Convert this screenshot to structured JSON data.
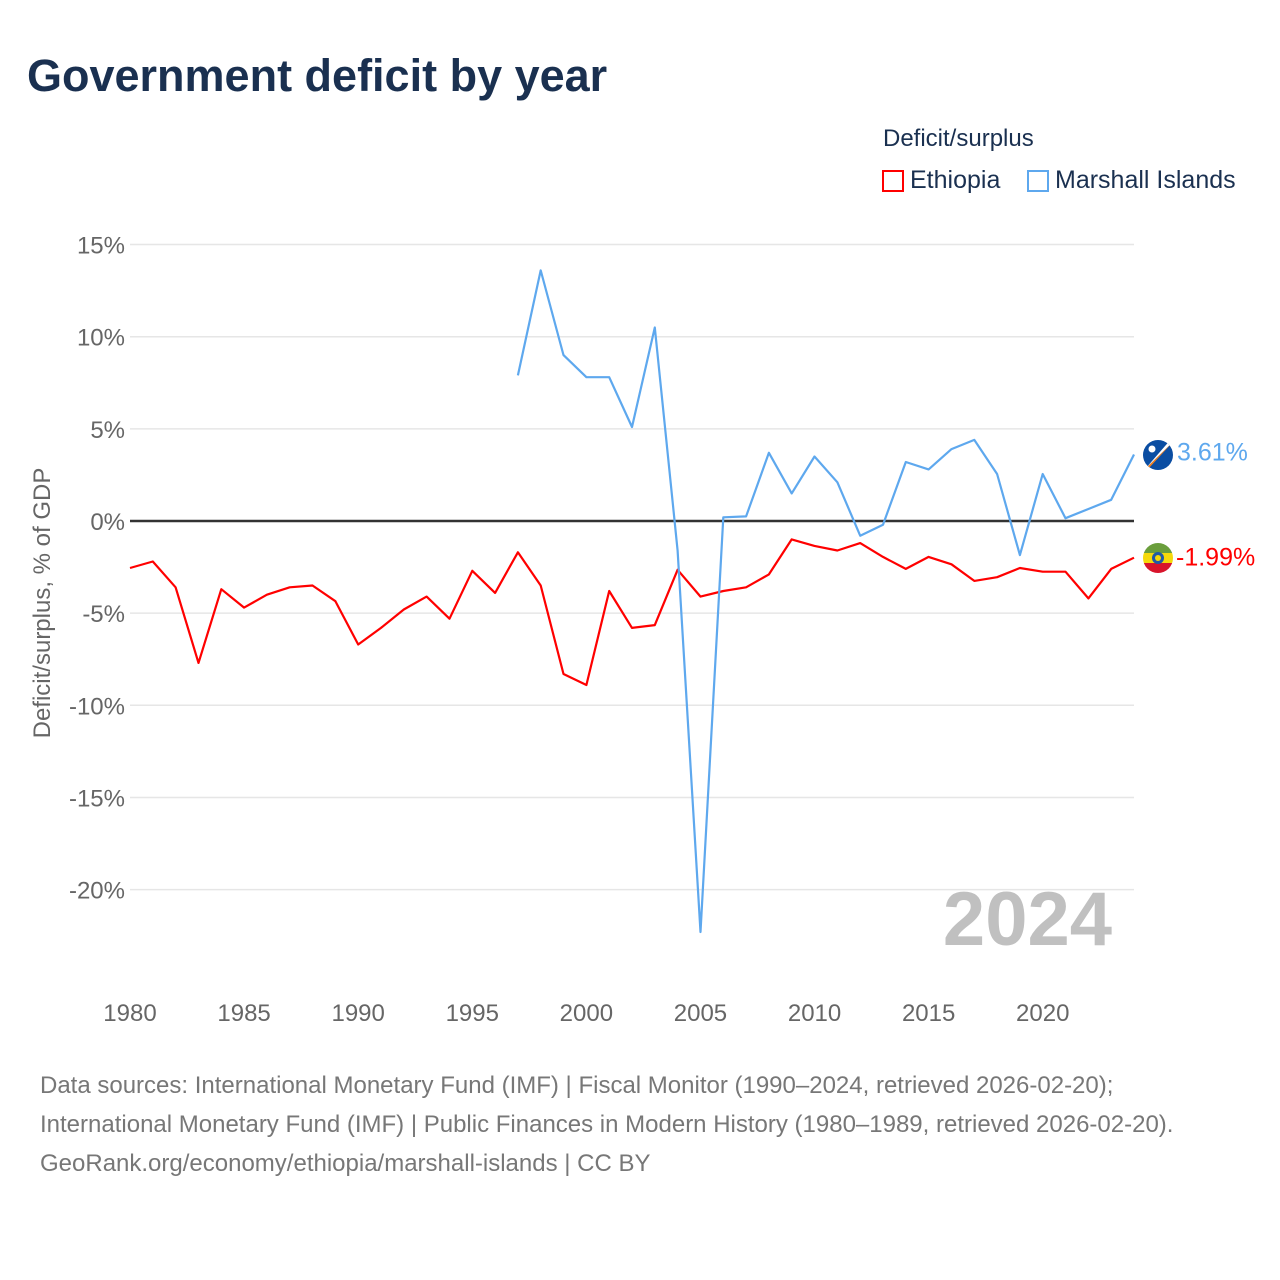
{
  "title": "Government deficit by year",
  "legend": {
    "title": "Deficit/surplus",
    "items": [
      {
        "name": "Ethiopia",
        "color": "#ff0000"
      },
      {
        "name": "Marshall Islands",
        "color": "#5ea8ee"
      }
    ]
  },
  "chart_data": {
    "type": "line",
    "title": "Government deficit by year",
    "ylabel": "Deficit/surplus, % of GDP",
    "xlabel": "",
    "xlim": [
      1980,
      2024
    ],
    "ylim": [
      -25,
      15
    ],
    "yticks": [
      15,
      10,
      5,
      0,
      -5,
      -10,
      -15,
      -20
    ],
    "ytick_labels": [
      "15%",
      "10%",
      "5%",
      "0%",
      "-5%",
      "-10%",
      "-15%",
      "-20%"
    ],
    "xticks": [
      1980,
      1985,
      1990,
      1995,
      2000,
      2005,
      2010,
      2015,
      2020
    ],
    "xtick_labels": [
      "1980",
      "1985",
      "1990",
      "1995",
      "2000",
      "2005",
      "2010",
      "2015",
      "2020"
    ],
    "year_watermark": "2024",
    "series": [
      {
        "name": "Ethiopia",
        "color": "#ff0000",
        "end_label": "-1.99%",
        "x_start": 1980,
        "values": [
          -2.55,
          -2.2,
          -3.6,
          -7.7,
          -3.7,
          -4.7,
          -4.0,
          -3.6,
          -3.5,
          -4.35,
          -6.7,
          -5.8,
          -4.8,
          -4.1,
          -5.3,
          -2.7,
          -3.9,
          -1.7,
          -3.5,
          -8.3,
          -8.9,
          -3.8,
          -5.8,
          -5.65,
          -2.65,
          -4.1,
          -3.8,
          -3.6,
          -2.9,
          -1.0,
          -1.35,
          -1.6,
          -1.2,
          -1.95,
          -2.6,
          -1.95,
          -2.35,
          -3.25,
          -3.05,
          -2.55,
          -2.75,
          -2.75,
          -4.2,
          -2.6,
          -1.99
        ]
      },
      {
        "name": "Marshall Islands",
        "color": "#5ea8ee",
        "end_label": "3.61%",
        "x_start": 1997,
        "values": [
          7.9,
          13.6,
          9.0,
          7.8,
          7.8,
          5.1,
          10.5,
          -1.6,
          -22.3,
          0.2,
          0.25,
          3.7,
          1.5,
          3.5,
          2.1,
          -0.8,
          -0.2,
          3.2,
          2.8,
          3.9,
          4.4,
          2.55,
          -1.85,
          2.55,
          0.15,
          0.65,
          1.15,
          3.61
        ]
      }
    ]
  },
  "sources": {
    "line1": "Data sources: International Monetary Fund (IMF) | Fiscal Monitor (1990–2024, retrieved 2026-02-20); International Monetary Fund (IMF) | Public Finances in Modern History (1980–1989, retrieved 2026-02-20).",
    "line2": "GeoRank.org/economy/ethiopia/marshall-islands | CC BY"
  }
}
